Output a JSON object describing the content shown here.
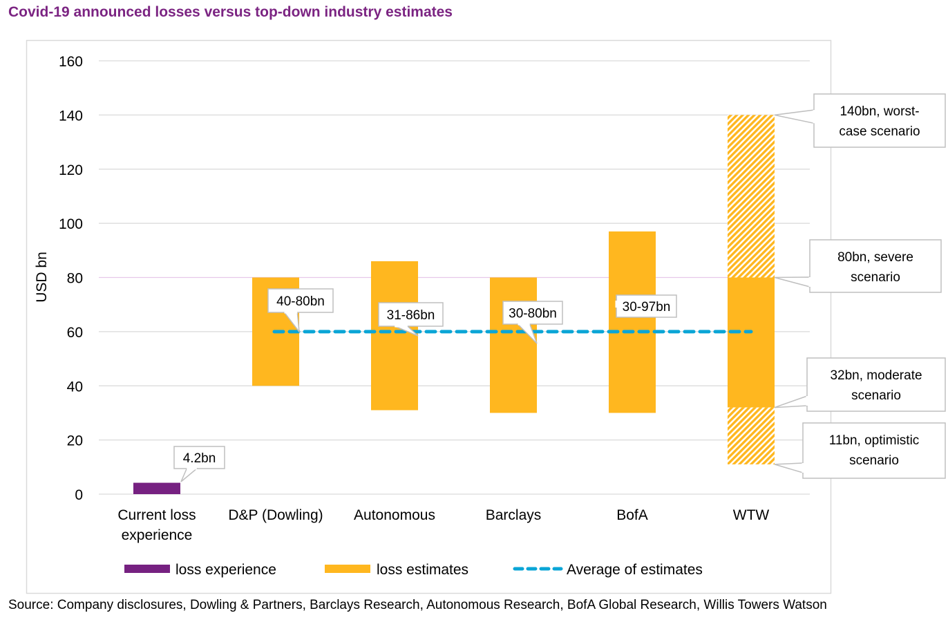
{
  "title": "Covid-19 announced losses versus top-down industry estimates",
  "source": "Source: Company disclosures, Dowling & Partners, Barclays Research, Autonomous Research, BofA Global Research, Willis Towers Watson",
  "chart_data": {
    "type": "bar",
    "title": "Covid-19 announced losses versus top-down industry estimates",
    "ylabel": "USD bn",
    "xlabel": "",
    "ylim": [
      0,
      160
    ],
    "yticks": [
      0,
      20,
      40,
      60,
      80,
      100,
      120,
      140,
      160
    ],
    "grid": true,
    "legend_placement": "bottom",
    "categories": [
      "Current loss experience",
      "D&P (Dowling)",
      "Autonomous",
      "Barclays",
      "BofA",
      "WTW"
    ],
    "series": [
      {
        "name": "loss experience",
        "color": "#762181",
        "ranges": [
          [
            0,
            4.2
          ],
          null,
          null,
          null,
          null,
          null
        ]
      },
      {
        "name": "loss estimates",
        "color": "#ffb71f",
        "ranges": [
          null,
          [
            40,
            80
          ],
          [
            31,
            86
          ],
          [
            30,
            80
          ],
          [
            30,
            97
          ],
          [
            32,
            80
          ]
        ]
      },
      {
        "name": "Average of estimates",
        "color": "#0aa5d6",
        "style": "dashed",
        "value": 60
      }
    ],
    "wtw_hatched_ranges": [
      [
        11,
        32
      ],
      [
        80,
        140
      ]
    ],
    "data_labels": [
      "4.2bn",
      "40-80bn",
      "31-86bn",
      "30-80bn",
      "30-97bn"
    ],
    "annotations": [
      {
        "text": "140bn, worst-case scenario",
        "lines": [
          "140bn, worst-",
          "case scenario"
        ],
        "value": 140
      },
      {
        "text": "80bn, severe scenario",
        "lines": [
          "80bn, severe",
          "scenario"
        ],
        "value": 80
      },
      {
        "text": "32bn, moderate scenario",
        "lines": [
          "32bn, moderate",
          "scenario"
        ],
        "value": 32
      },
      {
        "text": "11bn, optimistic scenario",
        "lines": [
          "11bn, optimistic",
          "scenario"
        ],
        "value": 11
      }
    ],
    "highlight_gridline": 80,
    "highlight_color": "#e6c8ea"
  }
}
